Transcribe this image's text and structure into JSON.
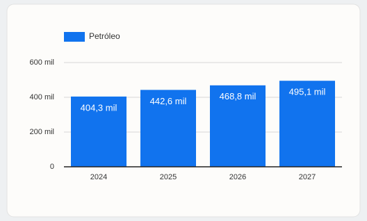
{
  "chart_data": {
    "type": "bar",
    "legend": "Petróleo",
    "categories": [
      "2024",
      "2025",
      "2026",
      "2027"
    ],
    "values": [
      404300,
      442600,
      468800,
      495100
    ],
    "value_labels": [
      "404,3 mil",
      "442,6 mil",
      "468,8 mil",
      "495,1 mil"
    ],
    "color": "#1173ee",
    "ylim": [
      0,
      600000
    ],
    "yticks": [
      {
        "value": 0,
        "label": "0"
      },
      {
        "value": 200000,
        "label": "200 mil"
      },
      {
        "value": 400000,
        "label": "400 mil"
      },
      {
        "value": 600000,
        "label": "600 mil"
      }
    ],
    "grid": true
  }
}
